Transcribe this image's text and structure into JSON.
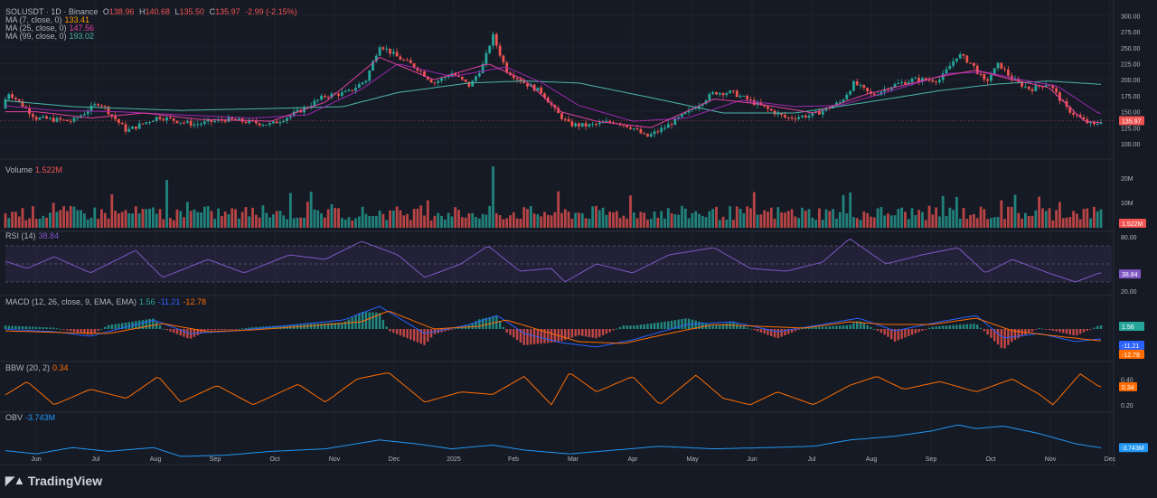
{
  "header": {
    "symbol": "SOLUSDT · 1D · Binance",
    "o_label": "O",
    "o": "138.96",
    "h_label": "H",
    "h": "140.68",
    "l_label": "L",
    "l": "135.50",
    "c_label": "C",
    "c": "135.97",
    "change": "-2.99 (-2.15%)"
  },
  "legend": {
    "ma7_label": "MA (7, close, 0)",
    "ma7_value": "133.41",
    "ma25_label": "MA (25, close, 0)",
    "ma25_value": "147.56",
    "ma99_label": "MA (99, close, 0)",
    "ma99_value": "193.02",
    "volume_label": "Volume",
    "volume_value": "1.522M",
    "rsi_label": "RSI (14)",
    "rsi_value": "38.84",
    "macd_label": "MACD (12, 26, close, 9, EMA, EMA)",
    "macd_value": "1.56",
    "macd_line": "-11.21",
    "macd_signal": "-12.78",
    "bbw_label": "BBW (20, 2)",
    "bbw_value": "0.34",
    "obv_label": "OBV",
    "obv_value": "-3.743M"
  },
  "colors": {
    "up": "#26a69a",
    "down": "#ef5350",
    "ma7": "#e040a0",
    "ma25": "#9c27b0",
    "ma99": "#4db6ac",
    "rsi": "#7e57c2",
    "macd": "#2962ff",
    "signal": "#ff6d00",
    "bbw": "#ff6d00",
    "obv": "#2196f3",
    "background": "#161a25"
  },
  "brand": {
    "name": "TradingView",
    "icon": "tradingview-logo-icon"
  },
  "chart_data": {
    "type": "candlestick",
    "x_ticks": [
      "Jun",
      "Jul",
      "Aug",
      "Sep",
      "Oct",
      "Nov",
      "Dec",
      "2025",
      "Feb",
      "Mar",
      "Apr",
      "May",
      "Jun",
      "Jul",
      "Aug",
      "Sep",
      "Oct",
      "Nov",
      "Dec"
    ],
    "price_axis": [
      "300.00",
      "275.00",
      "250.00",
      "225.00",
      "200.00",
      "175.00",
      "150.00",
      "125.00",
      "100.00"
    ],
    "price_range": [
      90,
      305
    ],
    "last_price": "135.97",
    "price_anchors": [
      [
        0,
        155
      ],
      [
        10,
        180
      ],
      [
        40,
        140
      ],
      [
        80,
        135
      ],
      [
        110,
        165
      ],
      [
        140,
        120
      ],
      [
        175,
        142
      ],
      [
        215,
        130
      ],
      [
        250,
        138
      ],
      [
        300,
        130
      ],
      [
        330,
        150
      ],
      [
        360,
        175
      ],
      [
        385,
        180
      ],
      [
        405,
        200
      ],
      [
        420,
        255
      ],
      [
        440,
        235
      ],
      [
        460,
        220
      ],
      [
        480,
        195
      ],
      [
        500,
        210
      ],
      [
        520,
        190
      ],
      [
        535,
        225
      ],
      [
        545,
        270
      ],
      [
        560,
        215
      ],
      [
        580,
        195
      ],
      [
        600,
        180
      ],
      [
        615,
        150
      ],
      [
        630,
        130
      ],
      [
        650,
        128
      ],
      [
        680,
        135
      ],
      [
        700,
        125
      ],
      [
        715,
        110
      ],
      [
        735,
        125
      ],
      [
        760,
        148
      ],
      [
        790,
        180
      ],
      [
        810,
        180
      ],
      [
        840,
        160
      ],
      [
        870,
        140
      ],
      [
        900,
        145
      ],
      [
        930,
        165
      ],
      [
        945,
        195
      ],
      [
        965,
        175
      ],
      [
        985,
        190
      ],
      [
        1010,
        200
      ],
      [
        1040,
        200
      ],
      [
        1060,
        240
      ],
      [
        1075,
        225
      ],
      [
        1090,
        195
      ],
      [
        1105,
        225
      ],
      [
        1120,
        200
      ],
      [
        1140,
        185
      ],
      [
        1160,
        195
      ],
      [
        1180,
        155
      ],
      [
        1200,
        135
      ],
      [
        1210,
        128
      ],
      [
        1218,
        136
      ]
    ],
    "ma7_anchors": [
      [
        0,
        150
      ],
      [
        40,
        150
      ],
      [
        100,
        140
      ],
      [
        160,
        148
      ],
      [
        220,
        138
      ],
      [
        300,
        135
      ],
      [
        360,
        165
      ],
      [
        420,
        235
      ],
      [
        480,
        200
      ],
      [
        540,
        225
      ],
      [
        580,
        200
      ],
      [
        620,
        150
      ],
      [
        660,
        135
      ],
      [
        720,
        125
      ],
      [
        790,
        170
      ],
      [
        840,
        162
      ],
      [
        900,
        148
      ],
      [
        960,
        178
      ],
      [
        1040,
        205
      ],
      [
        1080,
        215
      ],
      [
        1120,
        200
      ],
      [
        1160,
        188
      ],
      [
        1200,
        135
      ],
      [
        1216,
        133
      ]
    ],
    "ma25_anchors": [
      [
        0,
        160
      ],
      [
        60,
        152
      ],
      [
        130,
        150
      ],
      [
        200,
        145
      ],
      [
        280,
        140
      ],
      [
        340,
        145
      ],
      [
        400,
        185
      ],
      [
        440,
        225
      ],
      [
        500,
        205
      ],
      [
        560,
        220
      ],
      [
        600,
        195
      ],
      [
        640,
        160
      ],
      [
        700,
        135
      ],
      [
        760,
        140
      ],
      [
        820,
        168
      ],
      [
        880,
        158
      ],
      [
        930,
        160
      ],
      [
        980,
        180
      ],
      [
        1050,
        210
      ],
      [
        1090,
        212
      ],
      [
        1130,
        200
      ],
      [
        1170,
        190
      ],
      [
        1216,
        147
      ]
    ],
    "ma99_anchors": [
      [
        0,
        168
      ],
      [
        80,
        158
      ],
      [
        200,
        152
      ],
      [
        300,
        155
      ],
      [
        380,
        158
      ],
      [
        440,
        180
      ],
      [
        520,
        195
      ],
      [
        580,
        198
      ],
      [
        640,
        195
      ],
      [
        720,
        172
      ],
      [
        800,
        148
      ],
      [
        880,
        148
      ],
      [
        960,
        165
      ],
      [
        1040,
        183
      ],
      [
        1100,
        193
      ],
      [
        1160,
        198
      ],
      [
        1216,
        193
      ]
    ],
    "volume_axis": [
      "20M",
      "10M"
    ],
    "volume_last": "1.522M",
    "rsi_axis": [
      "80.00",
      "38.84",
      "20.00"
    ],
    "rsi_levels": [
      70,
      50,
      30
    ],
    "rsi_anchors": [
      [
        0,
        55
      ],
      [
        30,
        45
      ],
      [
        60,
        58
      ],
      [
        100,
        40
      ],
      [
        150,
        65
      ],
      [
        180,
        35
      ],
      [
        230,
        55
      ],
      [
        270,
        40
      ],
      [
        320,
        60
      ],
      [
        360,
        55
      ],
      [
        400,
        75
      ],
      [
        440,
        60
      ],
      [
        470,
        35
      ],
      [
        510,
        50
      ],
      [
        540,
        70
      ],
      [
        575,
        42
      ],
      [
        610,
        45
      ],
      [
        625,
        30
      ],
      [
        660,
        50
      ],
      [
        700,
        40
      ],
      [
        740,
        60
      ],
      [
        790,
        68
      ],
      [
        830,
        45
      ],
      [
        870,
        42
      ],
      [
        910,
        52
      ],
      [
        940,
        78
      ],
      [
        980,
        50
      ],
      [
        1020,
        60
      ],
      [
        1060,
        68
      ],
      [
        1090,
        40
      ],
      [
        1120,
        55
      ],
      [
        1160,
        40
      ],
      [
        1190,
        30
      ],
      [
        1216,
        40
      ]
    ],
    "macd_anchors": [
      [
        0,
        0
      ],
      [
        60,
        -3
      ],
      [
        100,
        -8
      ],
      [
        170,
        10
      ],
      [
        210,
        -5
      ],
      [
        260,
        -2
      ],
      [
        330,
        5
      ],
      [
        380,
        10
      ],
      [
        420,
        25
      ],
      [
        470,
        -5
      ],
      [
        520,
        5
      ],
      [
        550,
        15
      ],
      [
        580,
        -5
      ],
      [
        620,
        -15
      ],
      [
        660,
        -20
      ],
      [
        700,
        -12
      ],
      [
        760,
        5
      ],
      [
        810,
        8
      ],
      [
        860,
        -3
      ],
      [
        910,
        5
      ],
      [
        950,
        12
      ],
      [
        990,
        -2
      ],
      [
        1040,
        8
      ],
      [
        1080,
        15
      ],
      [
        1110,
        -10
      ],
      [
        1150,
        -5
      ],
      [
        1190,
        -14
      ],
      [
        1216,
        -11
      ]
    ],
    "signal_anchors": [
      [
        0,
        -2
      ],
      [
        70,
        -4
      ],
      [
        120,
        -5
      ],
      [
        180,
        6
      ],
      [
        230,
        -3
      ],
      [
        280,
        -1
      ],
      [
        350,
        4
      ],
      [
        400,
        8
      ],
      [
        430,
        20
      ],
      [
        480,
        0
      ],
      [
        530,
        3
      ],
      [
        560,
        10
      ],
      [
        600,
        -2
      ],
      [
        640,
        -14
      ],
      [
        690,
        -16
      ],
      [
        740,
        -5
      ],
      [
        790,
        5
      ],
      [
        840,
        3
      ],
      [
        890,
        1
      ],
      [
        940,
        8
      ],
      [
        980,
        5
      ],
      [
        1030,
        5
      ],
      [
        1080,
        12
      ],
      [
        1120,
        -2
      ],
      [
        1170,
        -8
      ],
      [
        1216,
        -13
      ]
    ],
    "bbw_axis": [
      "0.40",
      "0.20"
    ],
    "bbw_anchors": [
      [
        0,
        0.25
      ],
      [
        30,
        0.38
      ],
      [
        60,
        0.2
      ],
      [
        100,
        0.32
      ],
      [
        140,
        0.25
      ],
      [
        175,
        0.42
      ],
      [
        200,
        0.22
      ],
      [
        240,
        0.35
      ],
      [
        280,
        0.2
      ],
      [
        330,
        0.36
      ],
      [
        360,
        0.22
      ],
      [
        395,
        0.4
      ],
      [
        430,
        0.45
      ],
      [
        470,
        0.22
      ],
      [
        510,
        0.3
      ],
      [
        545,
        0.28
      ],
      [
        580,
        0.42
      ],
      [
        610,
        0.2
      ],
      [
        630,
        0.45
      ],
      [
        660,
        0.3
      ],
      [
        700,
        0.42
      ],
      [
        730,
        0.2
      ],
      [
        770,
        0.43
      ],
      [
        800,
        0.25
      ],
      [
        830,
        0.2
      ],
      [
        860,
        0.3
      ],
      [
        900,
        0.2
      ],
      [
        940,
        0.35
      ],
      [
        970,
        0.42
      ],
      [
        1000,
        0.32
      ],
      [
        1040,
        0.38
      ],
      [
        1080,
        0.3
      ],
      [
        1120,
        0.4
      ],
      [
        1150,
        0.28
      ],
      [
        1165,
        0.2
      ],
      [
        1195,
        0.44
      ],
      [
        1216,
        0.34
      ]
    ],
    "obv_anchors": [
      [
        0,
        -5
      ],
      [
        40,
        -8
      ],
      [
        80,
        -3
      ],
      [
        120,
        -6
      ],
      [
        170,
        -3
      ],
      [
        200,
        -10
      ],
      [
        250,
        -9
      ],
      [
        300,
        -6
      ],
      [
        360,
        -4
      ],
      [
        420,
        3
      ],
      [
        460,
        0
      ],
      [
        500,
        -4
      ],
      [
        545,
        -1
      ],
      [
        580,
        -5
      ],
      [
        630,
        -8
      ],
      [
        680,
        -5
      ],
      [
        730,
        -2
      ],
      [
        790,
        -4
      ],
      [
        850,
        -3
      ],
      [
        900,
        -2
      ],
      [
        940,
        3
      ],
      [
        990,
        6
      ],
      [
        1030,
        10
      ],
      [
        1060,
        15
      ],
      [
        1080,
        12
      ],
      [
        1110,
        14
      ],
      [
        1150,
        8
      ],
      [
        1190,
        0
      ],
      [
        1216,
        -3
      ]
    ]
  }
}
